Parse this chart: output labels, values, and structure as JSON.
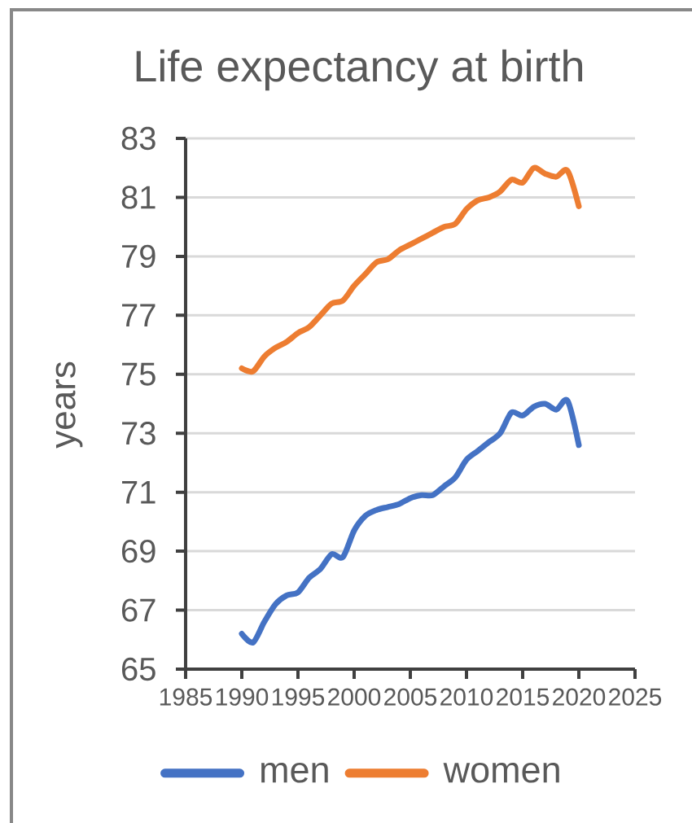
{
  "chart_data": {
    "type": "line",
    "title": "Life expectancy at birth",
    "ylabel": "years",
    "x": [
      1990,
      1991,
      1992,
      1993,
      1994,
      1995,
      1996,
      1997,
      1998,
      1999,
      2000,
      2001,
      2002,
      2003,
      2004,
      2005,
      2006,
      2007,
      2008,
      2009,
      2010,
      2011,
      2012,
      2013,
      2014,
      2015,
      2016,
      2017,
      2018,
      2019,
      2020
    ],
    "series": [
      {
        "name": "men",
        "color": "#4472c4",
        "values": [
          66.2,
          65.9,
          66.6,
          67.2,
          67.5,
          67.6,
          68.1,
          68.4,
          68.9,
          68.8,
          69.7,
          70.2,
          70.4,
          70.5,
          70.6,
          70.8,
          70.9,
          70.9,
          71.2,
          71.5,
          72.1,
          72.4,
          72.7,
          73.0,
          73.7,
          73.6,
          73.9,
          74.0,
          73.8,
          74.1,
          72.6
        ]
      },
      {
        "name": "women",
        "color": "#ed7d31",
        "values": [
          75.2,
          75.1,
          75.6,
          75.9,
          76.1,
          76.4,
          76.6,
          77.0,
          77.4,
          77.5,
          78.0,
          78.4,
          78.8,
          78.9,
          79.2,
          79.4,
          79.6,
          79.8,
          80.0,
          80.1,
          80.6,
          80.9,
          81.0,
          81.2,
          81.6,
          81.5,
          82.0,
          81.8,
          81.7,
          81.9,
          80.7
        ]
      }
    ],
    "xlim": [
      1985,
      2025
    ],
    "xticks": [
      1985,
      1990,
      1995,
      2000,
      2005,
      2010,
      2015,
      2020,
      2025
    ],
    "ylim": [
      65,
      83
    ],
    "yticks": [
      65,
      67,
      69,
      71,
      73,
      75,
      77,
      79,
      81,
      83
    ],
    "grid": "y",
    "legend": "bottom"
  }
}
